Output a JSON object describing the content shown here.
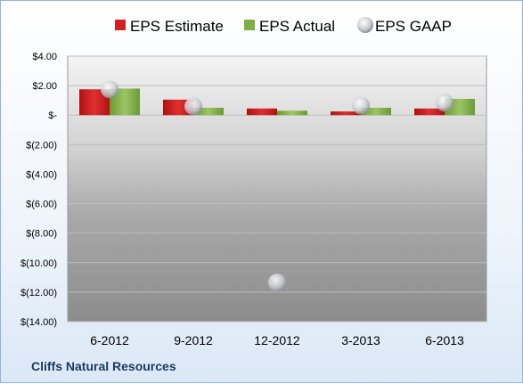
{
  "footer": {
    "company": "Cliffs Natural Resources"
  },
  "chart_data": {
    "type": "bar",
    "title": "",
    "xlabel": "",
    "ylabel": "",
    "categories": [
      "6-2012",
      "9-2012",
      "12-2012",
      "3-2013",
      "6-2013"
    ],
    "series": [
      {
        "name": "EPS Estimate",
        "kind": "bar",
        "color": "#d42020",
        "values": [
          1.75,
          1.05,
          0.45,
          0.25,
          0.45
        ]
      },
      {
        "name": "EPS Actual",
        "kind": "bar",
        "color": "#7fae45",
        "values": [
          1.8,
          0.5,
          0.3,
          0.5,
          1.1
        ]
      },
      {
        "name": "EPS GAAP",
        "kind": "marker",
        "color": "#c0c4cc",
        "values": [
          1.75,
          0.6,
          -11.35,
          0.65,
          0.85
        ]
      }
    ],
    "ylim": [
      -14,
      4
    ],
    "yticks": [
      4,
      2,
      0,
      -2,
      -4,
      -6,
      -8,
      -10,
      -12,
      -14
    ],
    "ytick_labels": [
      "$4.00",
      "$2.00",
      "$-",
      "$(2.00)",
      "$(4.00)",
      "$(6.00)",
      "$(8.00)",
      "$(10.00)",
      "$(12.00)",
      "$(14.00)"
    ],
    "grid": true,
    "legend": "top"
  }
}
